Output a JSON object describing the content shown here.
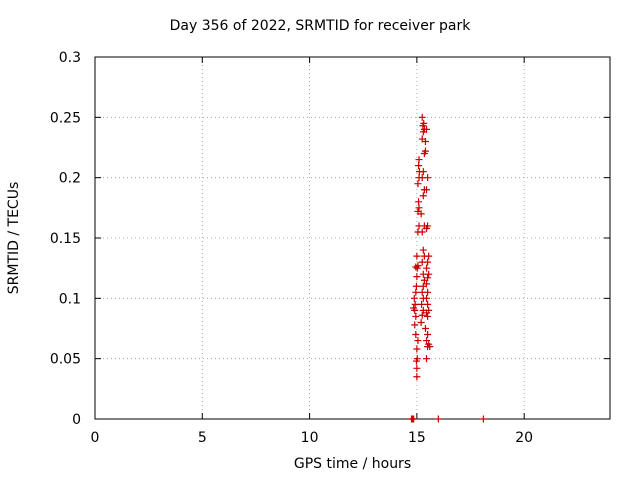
{
  "chart_data": {
    "type": "scatter",
    "title": "Day 356 of 2022, SRMTID for receiver park",
    "xlabel": "GPS time / hours",
    "ylabel": "SRMTID / TECUs",
    "xlim": [
      0,
      24
    ],
    "ylim": [
      0,
      0.3
    ],
    "xticks": [
      0,
      5,
      10,
      15,
      20
    ],
    "yticks": [
      0,
      0.05,
      0.1,
      0.15,
      0.2,
      0.25,
      0.3
    ],
    "grid": true,
    "marker": "plus",
    "color": "#cc0000",
    "points": [
      [
        14.75,
        0.0
      ],
      [
        14.8,
        0.0
      ],
      [
        14.85,
        0.0
      ],
      [
        16.0,
        0.0
      ],
      [
        18.1,
        0.0
      ],
      [
        15.0,
        0.035
      ],
      [
        15.0,
        0.042
      ],
      [
        14.98,
        0.048
      ],
      [
        15.02,
        0.05
      ],
      [
        15.0,
        0.058
      ],
      [
        15.05,
        0.065
      ],
      [
        14.95,
        0.07
      ],
      [
        14.9,
        0.078
      ],
      [
        14.95,
        0.085
      ],
      [
        14.9,
        0.09
      ],
      [
        14.85,
        0.092
      ],
      [
        14.92,
        0.095
      ],
      [
        14.88,
        0.1
      ],
      [
        14.95,
        0.105
      ],
      [
        14.98,
        0.11
      ],
      [
        15.0,
        0.118
      ],
      [
        15.02,
        0.125
      ],
      [
        14.95,
        0.126
      ],
      [
        15.05,
        0.127
      ],
      [
        15.0,
        0.135
      ],
      [
        15.05,
        0.155
      ],
      [
        15.1,
        0.16
      ],
      [
        15.05,
        0.172
      ],
      [
        15.1,
        0.175
      ],
      [
        15.08,
        0.18
      ],
      [
        15.05,
        0.195
      ],
      [
        15.1,
        0.2
      ],
      [
        15.12,
        0.205
      ],
      [
        15.08,
        0.21
      ],
      [
        15.1,
        0.215
      ],
      [
        15.2,
        0.08
      ],
      [
        15.25,
        0.086
      ],
      [
        15.3,
        0.09
      ],
      [
        15.22,
        0.095
      ],
      [
        15.3,
        0.1
      ],
      [
        15.25,
        0.105
      ],
      [
        15.3,
        0.11
      ],
      [
        15.35,
        0.115
      ],
      [
        15.3,
        0.12
      ],
      [
        15.25,
        0.13
      ],
      [
        15.35,
        0.135
      ],
      [
        15.3,
        0.14
      ],
      [
        15.25,
        0.155
      ],
      [
        15.35,
        0.16
      ],
      [
        15.2,
        0.17
      ],
      [
        15.3,
        0.185
      ],
      [
        15.35,
        0.19
      ],
      [
        15.25,
        0.2
      ],
      [
        15.3,
        0.205
      ],
      [
        15.35,
        0.22
      ],
      [
        15.25,
        0.232
      ],
      [
        15.3,
        0.238
      ],
      [
        15.35,
        0.24
      ],
      [
        15.28,
        0.243
      ],
      [
        15.32,
        0.245
      ],
      [
        15.25,
        0.25
      ],
      [
        15.4,
        0.23
      ],
      [
        15.4,
        0.222
      ],
      [
        15.45,
        0.05
      ],
      [
        15.5,
        0.06
      ],
      [
        15.45,
        0.065
      ],
      [
        15.5,
        0.07
      ],
      [
        15.4,
        0.075
      ],
      [
        15.5,
        0.085
      ],
      [
        15.45,
        0.088
      ],
      [
        15.55,
        0.09
      ],
      [
        15.5,
        0.095
      ],
      [
        15.45,
        0.1
      ],
      [
        15.5,
        0.105
      ],
      [
        15.45,
        0.112
      ],
      [
        15.5,
        0.117
      ],
      [
        15.55,
        0.12
      ],
      [
        15.45,
        0.125
      ],
      [
        15.5,
        0.13
      ],
      [
        15.55,
        0.135
      ],
      [
        15.45,
        0.158
      ],
      [
        15.5,
        0.16
      ],
      [
        15.45,
        0.19
      ],
      [
        15.5,
        0.2
      ],
      [
        15.45,
        0.24
      ],
      [
        15.6,
        0.06
      ],
      [
        15.55,
        0.062
      ]
    ]
  }
}
